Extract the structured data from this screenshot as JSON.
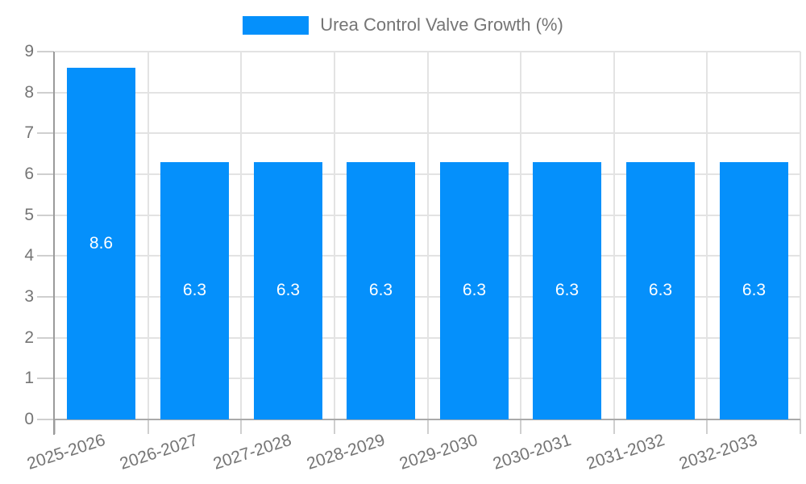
{
  "chart_data": {
    "type": "bar",
    "title": "Urea Control Valve Growth (%)",
    "series_name": "Urea Control Valve Growth (%)",
    "categories": [
      "2025-2026",
      "2026-2027",
      "2027-2028",
      "2028-2029",
      "2029-2030",
      "2030-2031",
      "2031-2032",
      "2032-2033"
    ],
    "values": [
      8.6,
      6.3,
      6.3,
      6.3,
      6.3,
      6.3,
      6.3,
      6.3
    ],
    "bar_value_labels": [
      "8.6",
      "6.3",
      "6.3",
      "6.3",
      "6.3",
      "6.3",
      "6.3",
      "6.3"
    ],
    "xlabel": "",
    "ylabel": "",
    "ylim": [
      0,
      9
    ],
    "yticks": [
      0,
      1,
      2,
      3,
      4,
      5,
      6,
      7,
      8,
      9
    ],
    "grid": true,
    "legend_position": "top-center",
    "x_label_rotation_deg": -18,
    "colors": {
      "bar": "#0590fb",
      "bar_label": "#ffffff",
      "axis_text": "#757575",
      "grid_line": "#e3e3e3",
      "tick_line": "#cfcfcf",
      "baseline": "#aaaaaa",
      "y_axis_line": "#9b9b9b",
      "background": "#ffffff"
    }
  }
}
